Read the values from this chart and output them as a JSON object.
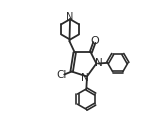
{
  "background": "#ffffff",
  "line_color": "#2a2a2a",
  "line_width": 1.3,
  "font_size": 7.5,
  "figsize": [
    1.58,
    1.27
  ],
  "dpi": 100,
  "xlim": [
    0,
    1
  ],
  "ylim": [
    0,
    1
  ]
}
